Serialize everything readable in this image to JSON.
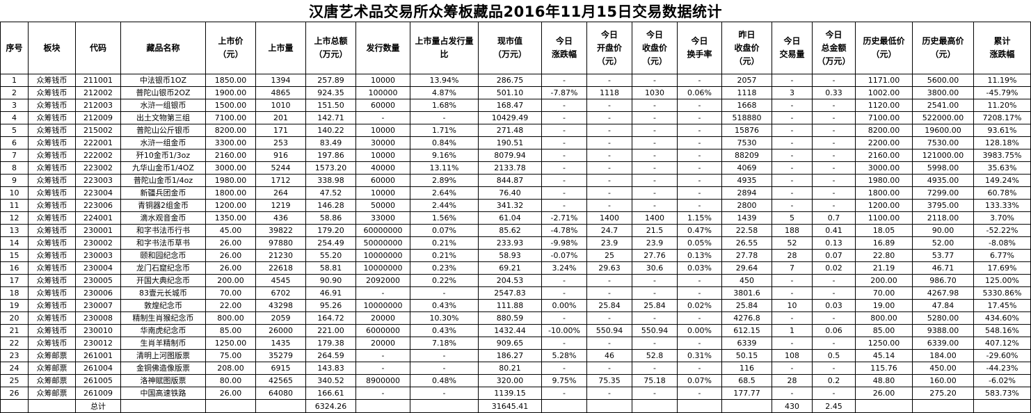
{
  "title": "汉唐艺术品交易所众筹板藏品2016年11月15日交易数据统计",
  "headers": [
    "序号",
    "板块",
    "代码",
    "藏品名称",
    "上市价\n（元）",
    "上市量",
    "上市总额\n（万元）",
    "发行数量",
    "上市量占发行量\n比",
    "现市值\n（万元）",
    "今日\n涨跌幅",
    "今日\n开盘价\n（元）",
    "今日\n收盘价\n（元）",
    "今日\n换手率",
    "昨日\n收盘价\n（元）",
    "今日\n交易量",
    "今日\n总金额\n（万元）",
    "历史最低价\n（元）",
    "历史最高价\n（元）",
    "累计\n涨跌幅"
  ],
  "rows": [
    [
      "1",
      "众筹钱币",
      "211001",
      "中法银币1OZ",
      "1850.00",
      "1394",
      "257.89",
      "10000",
      "13.94%",
      "286.75",
      "-",
      "-",
      "-",
      "-",
      "2057",
      "-",
      "-",
      "1171.00",
      "5600.00",
      "11.19%"
    ],
    [
      "2",
      "众筹钱币",
      "212002",
      "普陀山银币2OZ",
      "1900.00",
      "4865",
      "924.35",
      "100000",
      "4.87%",
      "501.10",
      "-7.87%",
      "1118",
      "1030",
      "0.06%",
      "1118",
      "3",
      "0.33",
      "1002.00",
      "3800.00",
      "-45.79%"
    ],
    [
      "3",
      "众筹钱币",
      "212003",
      "水浒一组银币",
      "1500.00",
      "1010",
      "151.50",
      "60000",
      "1.68%",
      "168.47",
      "-",
      "-",
      "-",
      "-",
      "1668",
      "-",
      "-",
      "1120.00",
      "2541.00",
      "11.20%"
    ],
    [
      "4",
      "众筹钱币",
      "212009",
      "出土文物第三组",
      "7100.00",
      "201",
      "142.71",
      "-",
      "-",
      "10429.49",
      "-",
      "-",
      "-",
      "-",
      "518880",
      "-",
      "-",
      "7100.00",
      "522000.00",
      "7208.17%"
    ],
    [
      "5",
      "众筹钱币",
      "215002",
      "普陀山公斤银币",
      "8200.00",
      "171",
      "140.22",
      "10000",
      "1.71%",
      "271.48",
      "-",
      "-",
      "-",
      "-",
      "15876",
      "-",
      "-",
      "8200.00",
      "19600.00",
      "93.61%"
    ],
    [
      "6",
      "众筹钱币",
      "222001",
      "水浒一组金币",
      "3300.00",
      "253",
      "83.49",
      "30000",
      "0.84%",
      "190.51",
      "-",
      "-",
      "-",
      "-",
      "7530",
      "-",
      "-",
      "2200.00",
      "7530.00",
      "128.18%"
    ],
    [
      "7",
      "众筹钱币",
      "222002",
      "歼10金币1/3oz",
      "2160.00",
      "916",
      "197.86",
      "10000",
      "9.16%",
      "8079.94",
      "-",
      "-",
      "-",
      "-",
      "88209",
      "-",
      "-",
      "2160.00",
      "121000.00",
      "3983.75%"
    ],
    [
      "8",
      "众筹钱币",
      "223002",
      "九华山金币1/4OZ",
      "3000.00",
      "5244",
      "1573.20",
      "40000",
      "13.11%",
      "2133.78",
      "-",
      "-",
      "-",
      "-",
      "4069",
      "-",
      "-",
      "3000.00",
      "5998.00",
      "35.63%"
    ],
    [
      "9",
      "众筹钱币",
      "223003",
      "普陀山金币1/4oz",
      "1980.00",
      "1712",
      "338.98",
      "60000",
      "2.89%",
      "844.87",
      "-",
      "-",
      "-",
      "-",
      "4935",
      "-",
      "-",
      "1980.00",
      "4935.00",
      "149.24%"
    ],
    [
      "10",
      "众筹钱币",
      "223004",
      "新疆兵团金币",
      "1800.00",
      "264",
      "47.52",
      "10000",
      "2.64%",
      "76.40",
      "-",
      "-",
      "-",
      "-",
      "2894",
      "-",
      "-",
      "1800.00",
      "7299.00",
      "60.78%"
    ],
    [
      "11",
      "众筹钱币",
      "223006",
      "青铜器2组金币",
      "1200.00",
      "1219",
      "146.28",
      "50000",
      "2.44%",
      "341.32",
      "-",
      "-",
      "-",
      "-",
      "2800",
      "-",
      "-",
      "1200.00",
      "3795.00",
      "133.33%"
    ],
    [
      "12",
      "众筹钱币",
      "224001",
      "滴水观音金币",
      "1350.00",
      "436",
      "58.86",
      "33000",
      "1.56%",
      "61.04",
      "-2.71%",
      "1400",
      "1400",
      "1.15%",
      "1439",
      "5",
      "0.7",
      "1100.00",
      "2118.00",
      "3.70%"
    ],
    [
      "13",
      "众筹钱币",
      "230001",
      "和字书法币行书",
      "45.00",
      "39822",
      "179.20",
      "60000000",
      "0.07%",
      "85.62",
      "-4.78%",
      "24.7",
      "21.5",
      "0.47%",
      "22.58",
      "188",
      "0.41",
      "18.05",
      "90.00",
      "-52.22%"
    ],
    [
      "14",
      "众筹钱币",
      "230002",
      "和字书法币草书",
      "26.00",
      "97880",
      "254.49",
      "50000000",
      "0.21%",
      "233.93",
      "-9.98%",
      "23.9",
      "23.9",
      "0.05%",
      "26.55",
      "52",
      "0.13",
      "16.89",
      "52.00",
      "-8.08%"
    ],
    [
      "15",
      "众筹钱币",
      "230003",
      "颐和园纪念币",
      "26.00",
      "21230",
      "55.20",
      "10000000",
      "0.21%",
      "58.93",
      "-0.07%",
      "25",
      "27.76",
      "0.13%",
      "27.78",
      "28",
      "0.07",
      "22.80",
      "53.77",
      "6.77%"
    ],
    [
      "16",
      "众筹钱币",
      "230004",
      "龙门石窟纪念币",
      "26.00",
      "22618",
      "58.81",
      "10000000",
      "0.23%",
      "69.21",
      "3.24%",
      "29.63",
      "30.6",
      "0.03%",
      "29.64",
      "7",
      "0.02",
      "21.19",
      "46.71",
      "17.69%"
    ],
    [
      "17",
      "众筹钱币",
      "230005",
      "开国大典纪念币",
      "200.00",
      "4545",
      "90.90",
      "2092000",
      "0.22%",
      "204.53",
      "-",
      "-",
      "-",
      "-",
      "450",
      "-",
      "-",
      "200.00",
      "986.70",
      "125.00%"
    ],
    [
      "18",
      "众筹钱币",
      "230006",
      "83壹元长城币",
      "70.00",
      "6702",
      "46.91",
      "-",
      "-",
      "2547.83",
      "-",
      "-",
      "-",
      "-",
      "3801.6",
      "-",
      "-",
      "70.00",
      "4267.98",
      "5330.86%"
    ],
    [
      "19",
      "众筹钱币",
      "230007",
      "敦煌纪念币",
      "22.00",
      "43298",
      "95.26",
      "10000000",
      "0.43%",
      "111.88",
      "0.00%",
      "25.84",
      "25.84",
      "0.02%",
      "25.84",
      "10",
      "0.03",
      "19.00",
      "47.84",
      "17.45%"
    ],
    [
      "20",
      "众筹钱币",
      "230008",
      "精制生肖猴纪念币",
      "800.00",
      "2059",
      "164.72",
      "20000",
      "10.30%",
      "880.59",
      "-",
      "-",
      "-",
      "-",
      "4276.8",
      "-",
      "-",
      "800.00",
      "5280.00",
      "434.60%"
    ],
    [
      "21",
      "众筹钱币",
      "230010",
      "华南虎纪念币",
      "85.00",
      "26000",
      "221.00",
      "6000000",
      "0.43%",
      "1432.44",
      "-10.00%",
      "550.94",
      "550.94",
      "0.00%",
      "612.15",
      "1",
      "0.06",
      "85.00",
      "9388.00",
      "548.16%"
    ],
    [
      "22",
      "众筹钱币",
      "230012",
      "生肖羊精制币",
      "1250.00",
      "1435",
      "179.38",
      "20000",
      "7.18%",
      "909.65",
      "-",
      "-",
      "-",
      "-",
      "6339",
      "-",
      "-",
      "1250.00",
      "6339.00",
      "407.12%"
    ],
    [
      "23",
      "众筹邮票",
      "261001",
      "清明上河图版票",
      "75.00",
      "35279",
      "264.59",
      "-",
      "-",
      "186.27",
      "5.28%",
      "46",
      "52.8",
      "0.31%",
      "50.15",
      "108",
      "0.5",
      "45.14",
      "184.00",
      "-29.60%"
    ],
    [
      "24",
      "众筹邮票",
      "261004",
      "金铜佛造像版票",
      "208.00",
      "6915",
      "143.83",
      "-",
      "-",
      "80.21",
      "-",
      "-",
      "-",
      "-",
      "116",
      "-",
      "-",
      "115.76",
      "450.00",
      "-44.23%"
    ],
    [
      "25",
      "众筹邮票",
      "261005",
      "洛神赋图版票",
      "80.00",
      "42565",
      "340.52",
      "8900000",
      "0.48%",
      "320.00",
      "9.75%",
      "75.35",
      "75.18",
      "0.07%",
      "68.5",
      "28",
      "0.2",
      "48.80",
      "160.00",
      "-6.02%"
    ],
    [
      "26",
      "众筹邮票",
      "261009",
      "中国高速铁路",
      "26.00",
      "64080",
      "166.61",
      "-",
      "-",
      "1139.15",
      "-",
      "-",
      "-",
      "-",
      "177.77",
      "-",
      "-",
      "26.00",
      "275.20",
      "583.73%"
    ]
  ],
  "total": {
    "label": "总计",
    "listing_total": "6324.26",
    "market_value_total": "31645.41",
    "volume_total": "430",
    "amount_total": "2.45"
  }
}
